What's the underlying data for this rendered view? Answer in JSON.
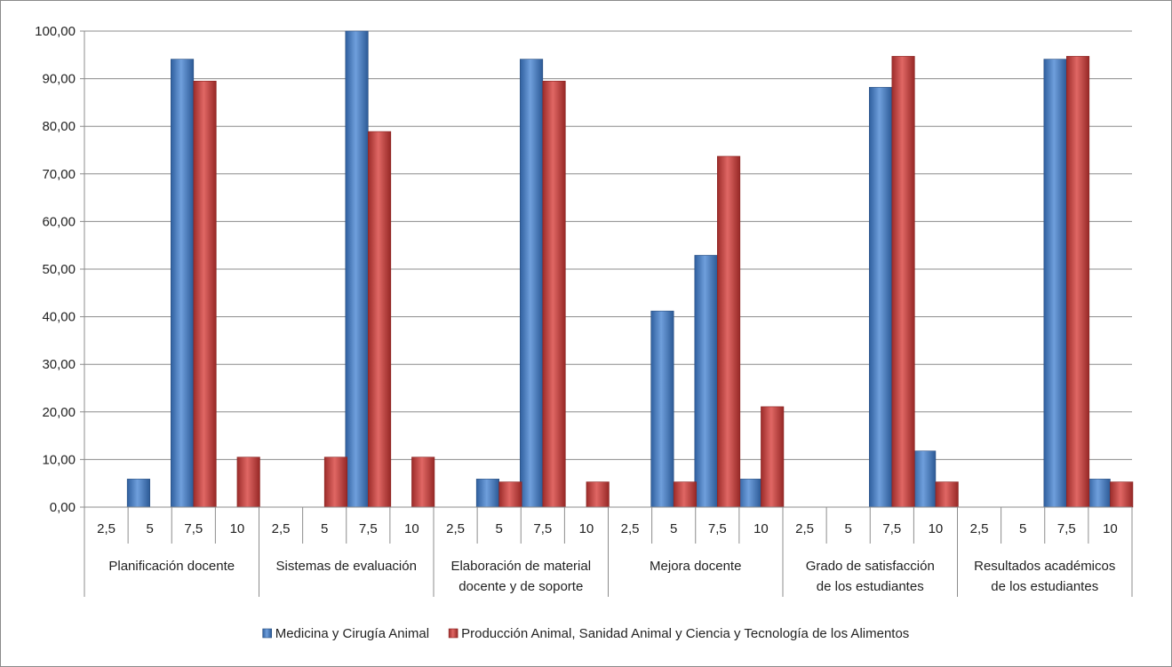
{
  "chart_data": {
    "type": "bar",
    "title": "",
    "xlabel": "",
    "ylabel": "",
    "ylim": [
      0,
      100
    ],
    "y_ticks": [
      "0,00",
      "10,00",
      "20,00",
      "30,00",
      "40,00",
      "50,00",
      "60,00",
      "70,00",
      "80,00",
      "90,00",
      "100,00"
    ],
    "grid": true,
    "legend_position": "bottom",
    "sub_categories": [
      "2,5",
      "5",
      "7,5",
      "10"
    ],
    "groups": [
      {
        "lines": [
          "Planificación docente"
        ]
      },
      {
        "lines": [
          "Sistemas de evaluación"
        ]
      },
      {
        "lines": [
          "Elaboración de material",
          "docente y de soporte"
        ]
      },
      {
        "lines": [
          "Mejora docente"
        ]
      },
      {
        "lines": [
          "Grado de satisfacción",
          "de los estudiantes"
        ]
      },
      {
        "lines": [
          "Resultados académicos",
          "de los estudiantes"
        ]
      }
    ],
    "series": [
      {
        "name": "Medicina y Cirugía Animal",
        "color": "#4a7ebb",
        "values": [
          0,
          5.9,
          94.1,
          0,
          0,
          0,
          100,
          0,
          0,
          5.9,
          94.1,
          0,
          0,
          41.2,
          52.9,
          5.9,
          0,
          0,
          88.2,
          11.8,
          0,
          0,
          94.1,
          5.9
        ]
      },
      {
        "name": "Producción Animal, Sanidad Animal y Ciencia y Tecnología de los Alimentos",
        "color": "#c0504d",
        "values": [
          0,
          0,
          89.5,
          10.5,
          0,
          10.5,
          78.9,
          10.5,
          0,
          5.3,
          89.5,
          5.3,
          0,
          5.3,
          73.7,
          21.1,
          0,
          0,
          94.7,
          5.3,
          0,
          0,
          94.7,
          5.3
        ]
      }
    ]
  }
}
